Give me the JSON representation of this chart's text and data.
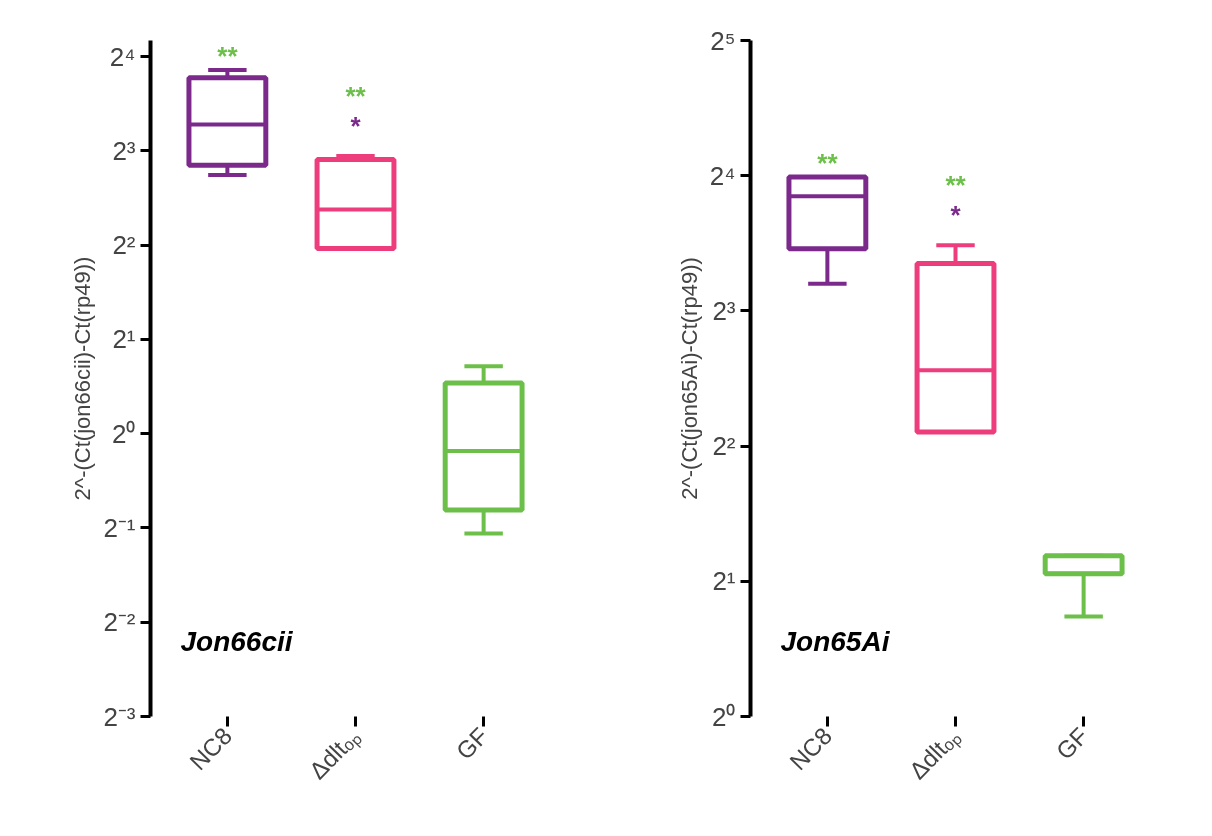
{
  "chart_data": [
    {
      "type": "box",
      "categories": [
        "NC8",
        "Δdltₒₚ",
        "GF"
      ],
      "boxes": [
        {
          "low": 6.7,
          "q1": 7.2,
          "median": 9.7,
          "q3": 13.7,
          "high": 14.5
        },
        {
          "low": 3.9,
          "q1": 3.9,
          "median": 5.2,
          "q3": 7.5,
          "high": 7.7
        },
        {
          "low": 0.48,
          "q1": 0.57,
          "median": 0.88,
          "q3": 1.45,
          "high": 1.64
        }
      ],
      "colors": [
        "#7b2a8c",
        "#ee3d7c",
        "#6cc04a"
      ],
      "ylabel": "2^-(Ct(jon66cii)-Ct(rp49))",
      "log": "y",
      "ylim": [
        0.125,
        18
      ],
      "yticks": [
        {
          "value": 0.125,
          "label": "2⁻³"
        },
        {
          "value": 0.25,
          "label": "2⁻²"
        },
        {
          "value": 0.5,
          "label": "2⁻¹"
        },
        {
          "value": 1,
          "label": "2⁰"
        },
        {
          "value": 2,
          "label": "2¹"
        },
        {
          "value": 4,
          "label": "2²"
        },
        {
          "value": 8,
          "label": "2³"
        },
        {
          "value": 16,
          "label": "2⁴"
        }
      ],
      "grid": false,
      "annotations": [
        "**",
        "**",
        "*",
        "Jon66cii"
      ]
    },
    {
      "type": "box",
      "categories": [
        "NC8",
        "Δdltₒₚ",
        "GF"
      ],
      "boxes": [
        {
          "low": 9.2,
          "q1": 11.0,
          "median": 14.4,
          "q3": 15.9,
          "high": 15.9
        },
        {
          "low": 4.3,
          "q1": 4.3,
          "median": 5.9,
          "q3": 10.2,
          "high": 11.2
        },
        {
          "low": 1.67,
          "q1": 2.08,
          "median": 2.08,
          "q3": 2.28,
          "high": 2.28
        }
      ],
      "colors": [
        "#7b2a8c",
        "#ee3d7c",
        "#6cc04a"
      ],
      "ylabel": "2^-(Ct(jon65Ai)-Ct(rp49))",
      "log": "y",
      "ylim": [
        1,
        32
      ],
      "yticks": [
        {
          "value": 1,
          "label": "2⁰"
        },
        {
          "value": 2,
          "label": "2¹"
        },
        {
          "value": 4,
          "label": "2²"
        },
        {
          "value": 8,
          "label": "2³"
        },
        {
          "value": 16,
          "label": "2⁴"
        },
        {
          "value": 32,
          "label": "2⁵"
        }
      ],
      "grid": false,
      "annotations": [
        "**",
        "**",
        "*",
        "Jon65Ai"
      ]
    }
  ]
}
